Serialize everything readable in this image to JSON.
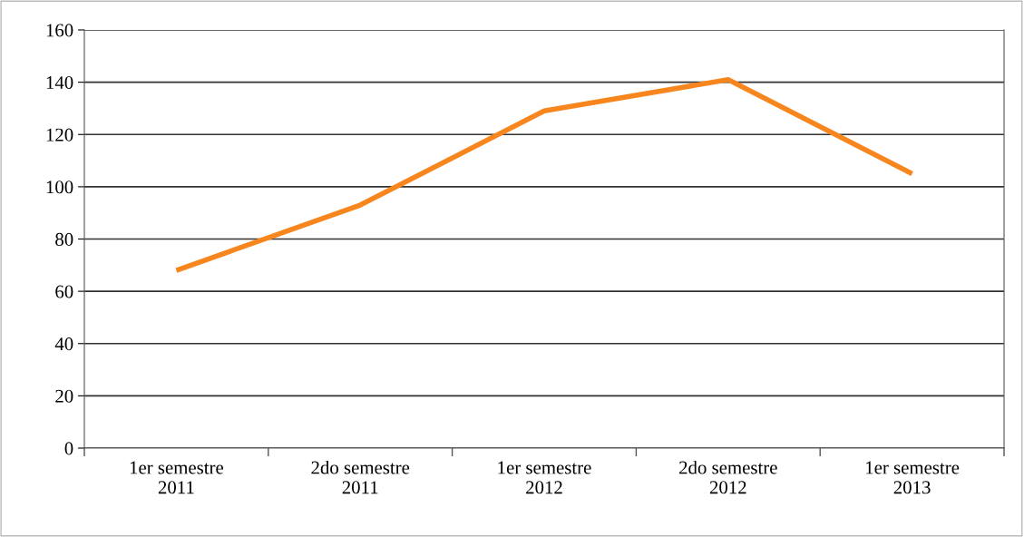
{
  "chart_data": {
    "type": "line",
    "categories": [
      "1er semestre\n2011",
      "2do semestre\n2011",
      "1er semestre\n2012",
      "2do semestre\n2012",
      "1er semestre\n2013"
    ],
    "series": [
      {
        "color": "#f7861f",
        "values": [
          68,
          93,
          129,
          141,
          105
        ]
      }
    ],
    "ylim": [
      0,
      160
    ],
    "yticks": [
      0,
      20,
      40,
      60,
      80,
      100,
      120,
      140,
      160
    ],
    "grid": "y",
    "legend": false,
    "marker": "none",
    "line_style": "solid"
  }
}
